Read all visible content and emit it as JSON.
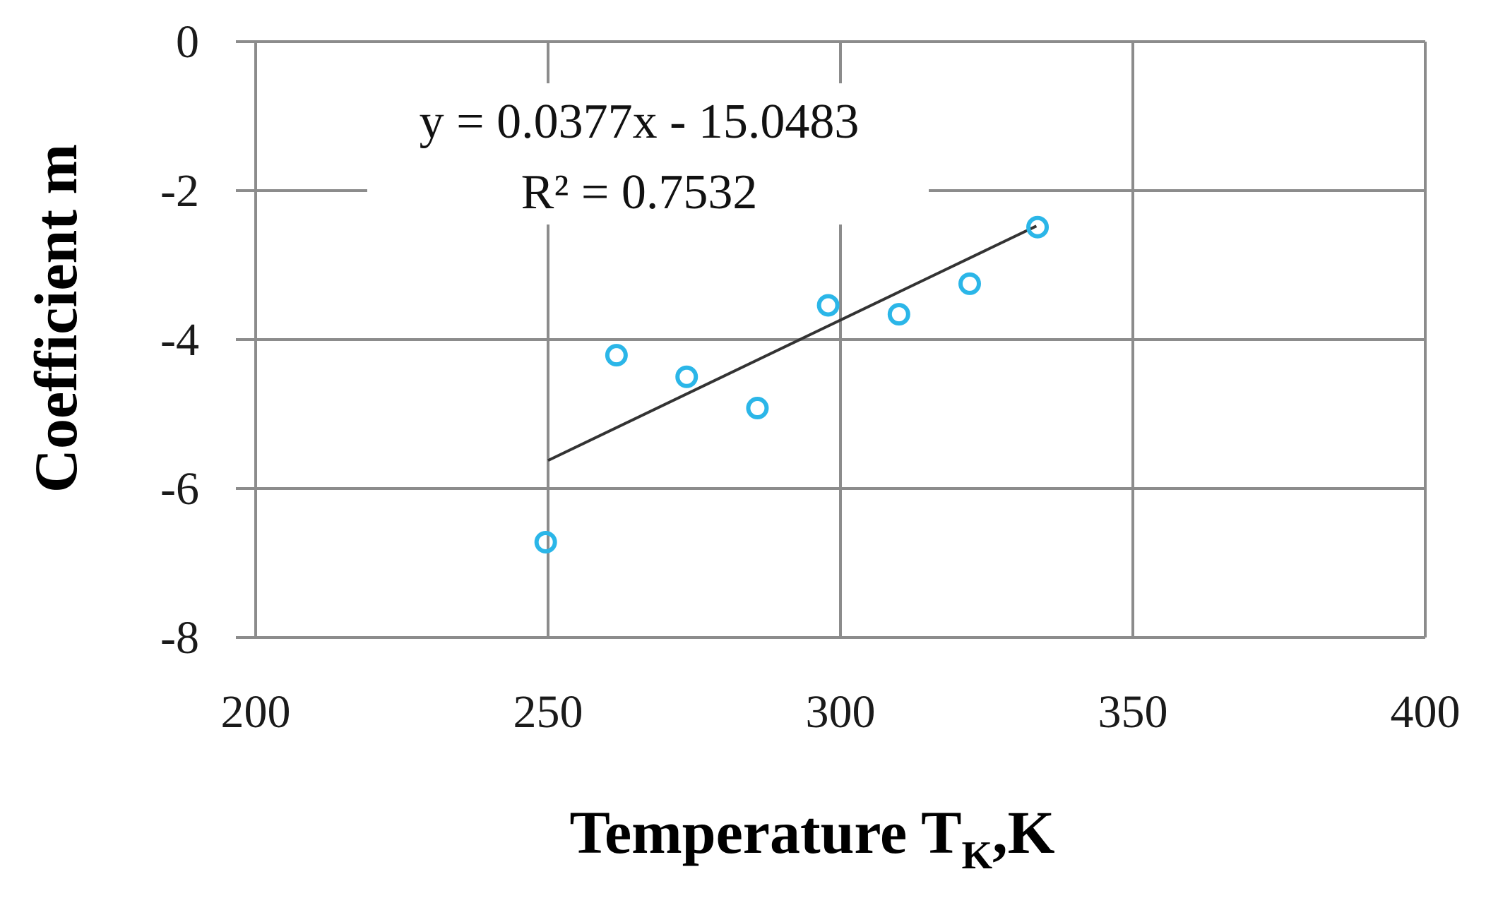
{
  "chart_data": {
    "type": "scatter",
    "title": "",
    "xlabel": "Temperature T",
    "xlabel_sub": "K",
    "xlabel_unit": ",K",
    "ylabel": "Coefficient m",
    "xlim": [
      200,
      400
    ],
    "ylim": [
      -8,
      0
    ],
    "x_ticks": [
      200,
      250,
      300,
      350,
      400
    ],
    "y_ticks": [
      0,
      -2,
      -4,
      -6,
      -8
    ],
    "x_tick_labels": [
      "200",
      "250",
      "300",
      "350",
      "400"
    ],
    "y_tick_labels": [
      "0",
      "-2",
      "-4",
      "-6",
      "-8"
    ],
    "grid": true,
    "series": [
      {
        "marker": "open-circle",
        "color": "#2bb6e8",
        "x": [
          249.6,
          261.7,
          273.7,
          285.8,
          297.9,
          310.0,
          322.1,
          333.7
        ],
        "y": [
          -6.72,
          -4.21,
          -4.5,
          -4.92,
          -3.54,
          -3.66,
          -3.25,
          -2.49
        ]
      }
    ],
    "trendline": {
      "type": "linear",
      "slope": 0.0377,
      "intercept": -15.0483,
      "x_range": [
        250,
        333.5
      ],
      "color": "#333333",
      "equation_label": "y = 0.0377x - 15.0483",
      "r2_label": "R² = 0.7532"
    }
  }
}
